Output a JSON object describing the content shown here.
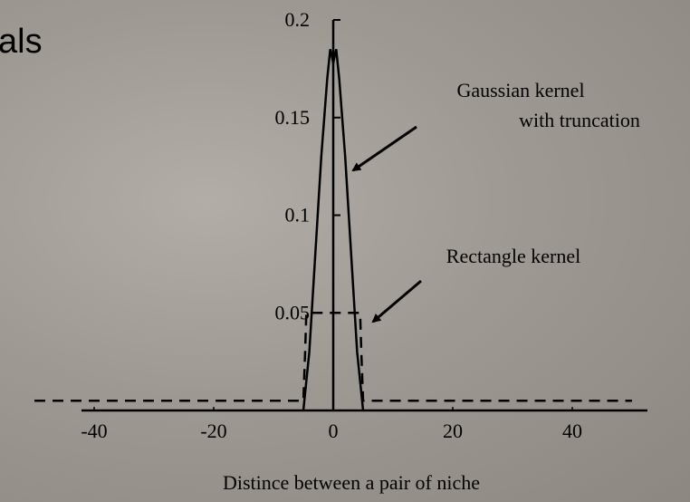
{
  "heading": "als",
  "chart_data": {
    "type": "line",
    "xlabel": "Distince between a pair of niche",
    "annotations": [
      "Gaussian kernel",
      "with truncation",
      "Rectangle kernel"
    ],
    "xlim": [
      -50,
      50
    ],
    "ylim": [
      0,
      0.2
    ],
    "xticks": [
      -40,
      -20,
      0,
      20,
      40
    ],
    "yticks": [
      0.05,
      0.1,
      0.15,
      0.2
    ],
    "series": [
      {
        "name": "Gaussian kernel with truncation",
        "color": "#000000",
        "dash": false,
        "x": [
          -5,
          -4,
          -2,
          -1,
          -0.5,
          0,
          0.5,
          1,
          2,
          4,
          5
        ],
        "values": [
          0,
          0.03,
          0.13,
          0.17,
          0.185,
          0.178,
          0.185,
          0.17,
          0.13,
          0.03,
          0
        ]
      },
      {
        "name": "Rectangle kernel",
        "color": "#000000",
        "dash": true,
        "x": [
          -50,
          -5,
          -4.7,
          -4.5,
          4.5,
          4.7,
          5,
          50
        ],
        "values": [
          0.005,
          0.005,
          0.03,
          0.05,
          0.05,
          0.03,
          0.005,
          0.005
        ]
      }
    ]
  }
}
